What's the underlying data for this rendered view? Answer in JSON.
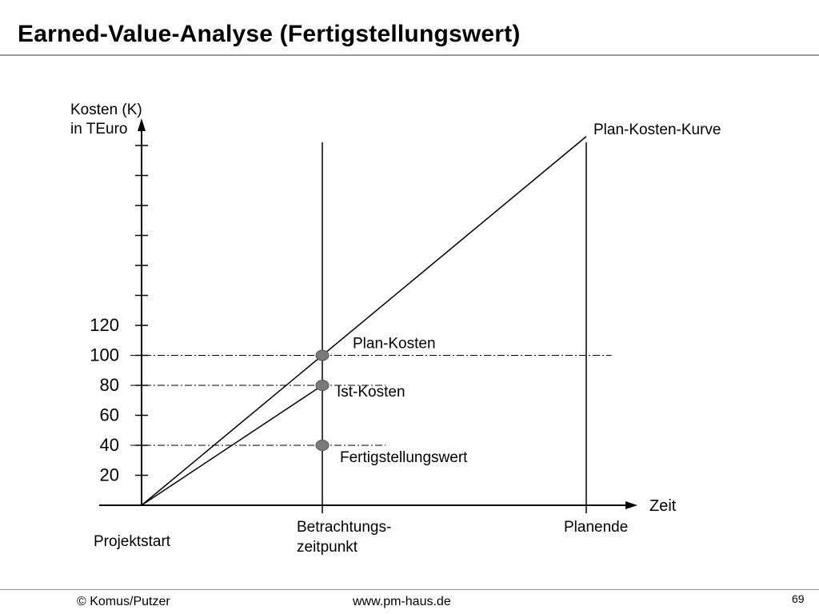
{
  "slide": {
    "title": "Earned-Value-Analyse (Fertigstellungswert)"
  },
  "footer": {
    "left": "© Komus/Putzer",
    "center": "www.pm-haus.de",
    "page_number": "69"
  },
  "chart_data": {
    "type": "line",
    "ylabel_lines": [
      "Kosten (K)",
      "in TEuro"
    ],
    "xlabel": "Zeit",
    "y_tick_labels": [
      20,
      40,
      60,
      80,
      100,
      120
    ],
    "y_tick_count": 12,
    "y_tick_step": 20,
    "x_labels": [
      {
        "x": 0,
        "lines": [
          "Projektstart"
        ]
      },
      {
        "x": 1,
        "lines": [
          "Betrachtungs-",
          "zeitpunkt"
        ]
      },
      {
        "x": 2.46,
        "lines": [
          "Planende"
        ]
      }
    ],
    "xlim": [
      0,
      2.46
    ],
    "ylim": [
      0,
      260
    ],
    "series": [
      {
        "name": "Plan-Kosten-Kurve",
        "x": [
          0,
          2.46
        ],
        "y": [
          0,
          246
        ]
      },
      {
        "name": "",
        "x": [
          0,
          1
        ],
        "y": [
          0,
          80
        ]
      }
    ],
    "vertical_lines": [
      1,
      2.46
    ],
    "reference_lines": [
      {
        "y": 100,
        "x_end": 2.6
      },
      {
        "y": 80,
        "x_end": 1.35
      },
      {
        "y": 40,
        "x_end": 1.35
      }
    ],
    "points": [
      {
        "x": 1,
        "y": 100,
        "label": "Plan-Kosten"
      },
      {
        "x": 1,
        "y": 80,
        "label": "Ist-Kosten"
      },
      {
        "x": 1,
        "y": 40,
        "label": "Fertigstellungswert"
      }
    ],
    "colors": {
      "line": "#000000",
      "marker": "#7a7a7a",
      "marker_stroke": "#555555"
    }
  }
}
